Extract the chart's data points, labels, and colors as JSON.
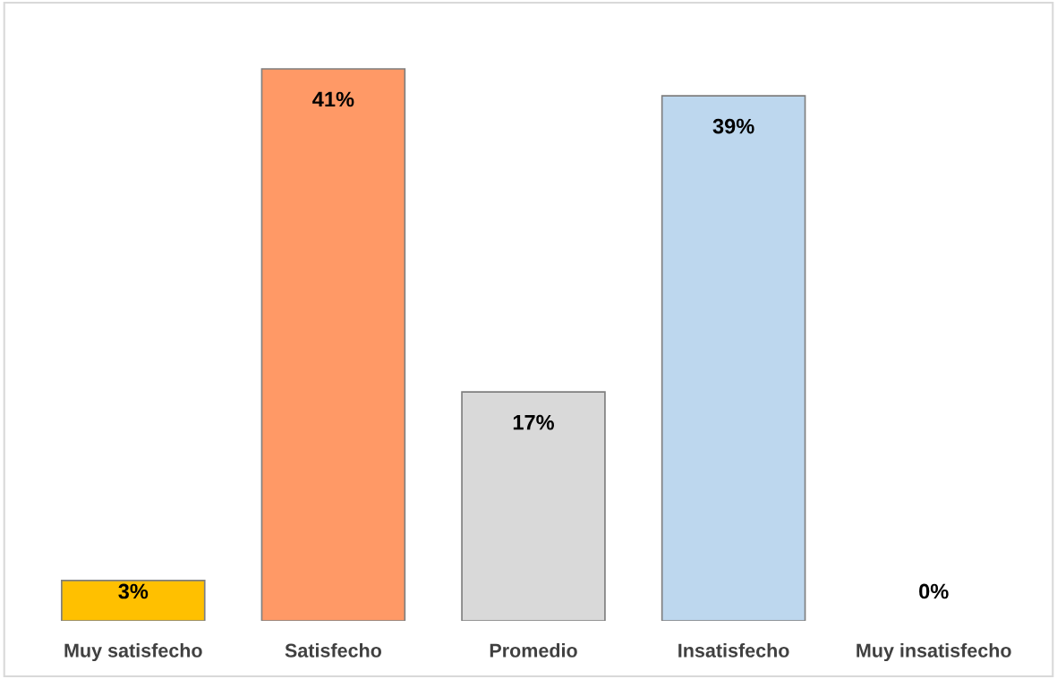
{
  "chart_data": {
    "type": "bar",
    "categories": [
      "Muy satisfecho",
      "Satisfecho",
      "Promedio",
      "Insatisfecho",
      "Muy insatisfecho"
    ],
    "values": [
      3,
      41,
      17,
      39,
      0
    ],
    "value_labels": [
      "3%",
      "41%",
      "17%",
      "39%",
      "0%"
    ],
    "colors": [
      "#ffc000",
      "#ff9966",
      "#d9d9d9",
      "#bdd7ee",
      "#ffffff"
    ],
    "grid": false,
    "legend": false
  }
}
